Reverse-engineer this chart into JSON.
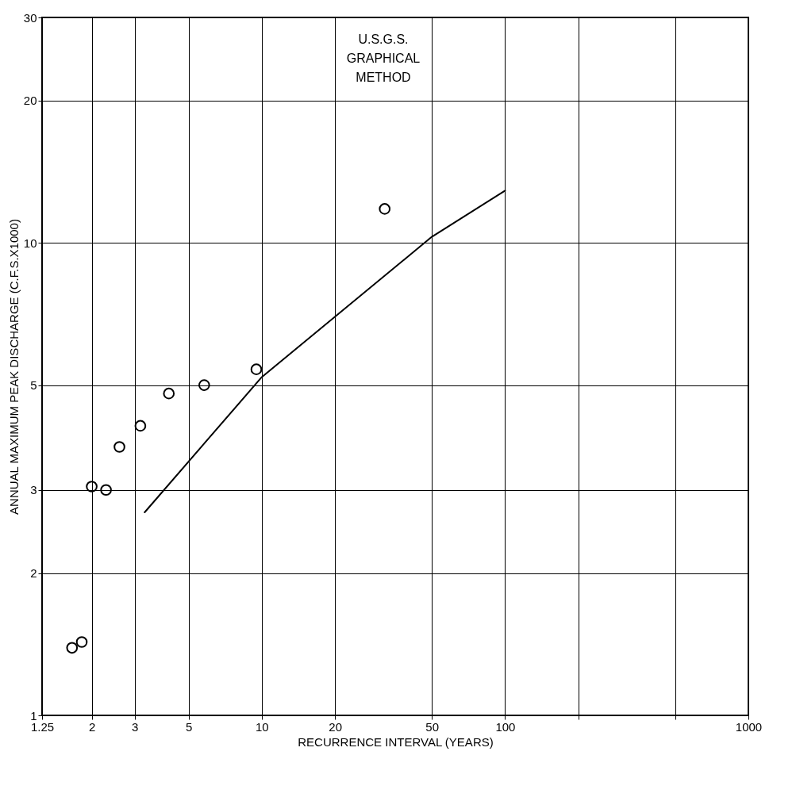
{
  "chart_data": {
    "type": "scatter",
    "xlabel": "RECURRENCE INTERVAL (YEARS)",
    "ylabel": "ANNUAL MAXIMUM PEAK DISCHARGE (C.F.S.X1000)",
    "log": "xy",
    "xlim": [
      1.25,
      1000
    ],
    "xticks": [
      1.25,
      2,
      3,
      5,
      10,
      20,
      50,
      100,
      {
        "value": 200,
        "label": null
      },
      {
        "value": 500,
        "label": null
      },
      1000
    ],
    "ylim": [
      1,
      30
    ],
    "yticks": [
      1,
      2,
      3,
      5,
      10,
      20,
      30
    ],
    "grid": true,
    "marker": "circle",
    "annotations": [
      "U.S.G.S.\nGRAPHICAL\nMETHOD"
    ],
    "series": [
      {
        "color": "#000000",
        "x": [
          32,
          9.5,
          5.8,
          4.15,
          3.17,
          2.6,
          2.29,
          2.0,
          1.82,
          1.66
        ],
        "values": [
          11.8,
          5.4,
          5.0,
          4.8,
          4.1,
          3.7,
          3.0,
          3.05,
          1.43,
          1.39
        ]
      },
      {
        "type": "line",
        "color": "#000000",
        "marker": "none",
        "line_style": "solid",
        "x": [
          3.3,
          10,
          50,
          100
        ],
        "values": [
          2.69,
          5.2,
          10.3,
          12.9
        ]
      }
    ]
  }
}
